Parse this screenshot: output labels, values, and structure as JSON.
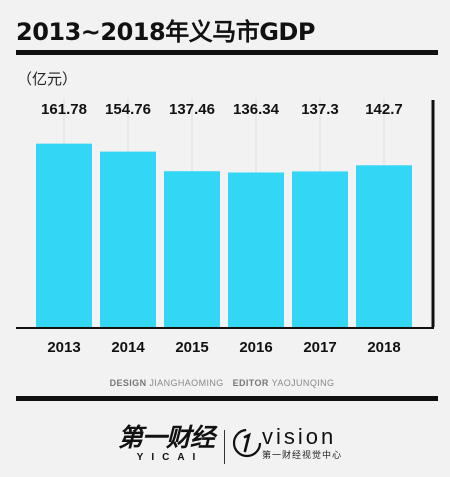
{
  "title": "2013~2018年义马市GDP",
  "unit_label": "（亿元）",
  "chart_data": {
    "type": "bar",
    "categories": [
      "2013",
      "2014",
      "2015",
      "2016",
      "2017",
      "2018"
    ],
    "values": [
      161.78,
      154.76,
      137.46,
      136.34,
      137.3,
      142.7
    ],
    "value_labels": [
      "161.78",
      "154.76",
      "137.46",
      "136.34",
      "137.3",
      "142.7"
    ],
    "ylim": [
      0,
      165
    ],
    "grid": "vertical",
    "colors": {
      "bar": "#33d6f4",
      "axis": "#111111",
      "grid": "#dddddd"
    }
  },
  "credits": {
    "design_label": "DESIGN",
    "design_name": "JIANGHAOMING",
    "editor_label": "EDITOR",
    "editor_name": "YAOJUNQING"
  },
  "footer": {
    "yicai_cn": "第一财经",
    "yicai_en": "YICAI",
    "vision_en": "vision",
    "vision_cn": "第一财经视觉中心"
  }
}
